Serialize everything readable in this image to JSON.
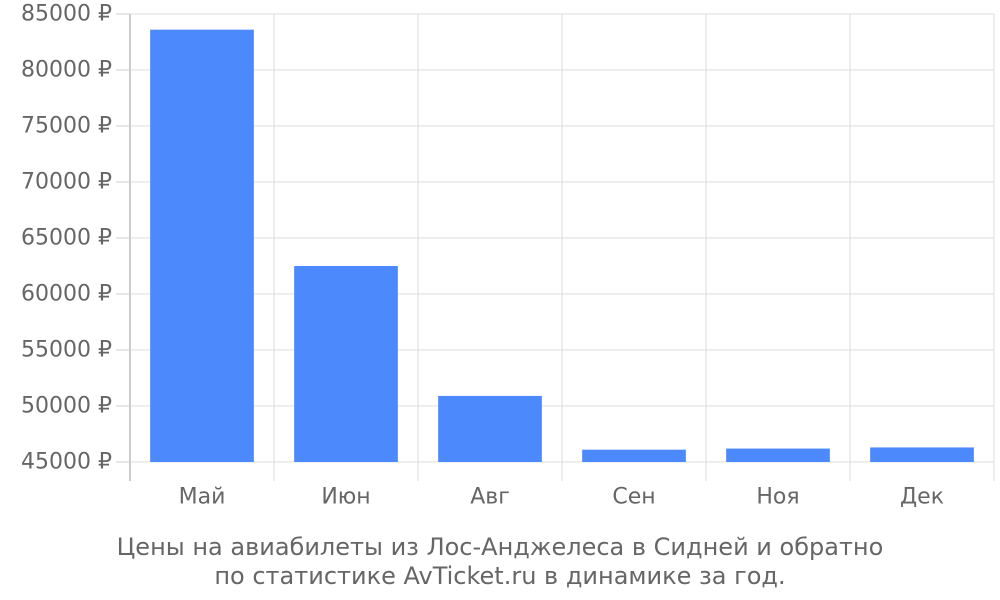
{
  "chart_data": {
    "type": "bar",
    "categories": [
      "Май",
      "Июн",
      "Авг",
      "Сен",
      "Ноя",
      "Дек"
    ],
    "values": [
      83600,
      62500,
      50900,
      46100,
      46200,
      46300
    ],
    "ylim": [
      45000,
      85000
    ],
    "yticks": [
      45000,
      50000,
      55000,
      60000,
      65000,
      70000,
      75000,
      80000,
      85000
    ],
    "y_tick_suffix": " ₽",
    "grid": true,
    "bar_color": "#4b89fc",
    "caption_line1": "Цены на авиабилеты из Лос-Анджелеса в Сидней и обратно",
    "caption_line2": "по статистике AvTicket.ru в динамике за год."
  }
}
